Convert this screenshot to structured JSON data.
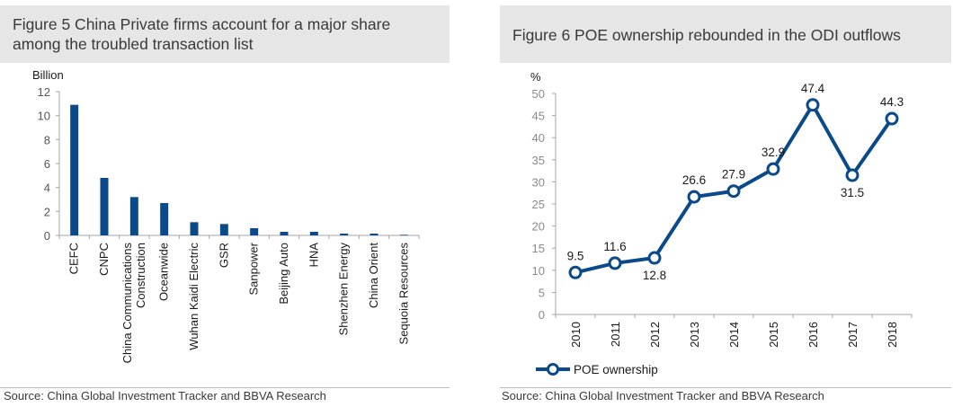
{
  "left": {
    "title": "Figure 5 China Private firms account for a major share among the troubled transaction list",
    "source": "Source: China Global Investment Tracker and BBVA Research"
  },
  "right": {
    "title": "Figure 6 POE ownership rebounded in the ODI outflows",
    "source": "Source: China Global Investment Tracker and BBVA Research"
  },
  "colors": {
    "series": "#0b4a8a",
    "axis": "#a6a6a6",
    "text": "#1a1a1a",
    "title_bg": "#e6e6e6"
  },
  "chart_data": [
    {
      "type": "bar",
      "title": "Figure 5 China Private firms account for a major share among the troubled transaction list",
      "ylabel": "Billion",
      "ylim": [
        0,
        12
      ],
      "yticks": [
        0,
        2,
        4,
        6,
        8,
        10,
        12
      ],
      "categories": [
        "CEFC",
        "CNPC",
        "China Communications Construction",
        "Oceanwide",
        "Wuhan Kaidi Electric",
        "GSR",
        "Sanpower",
        "Beijing Auto",
        "HNA",
        "Shenzhen Energy",
        "China Orient",
        "Sequoia Resources"
      ],
      "category_lines": [
        [
          "CEFC"
        ],
        [
          "CNPC"
        ],
        [
          "China Communications",
          "Construction"
        ],
        [
          "Oceanwide"
        ],
        [
          "Wuhan Kaidi Electric"
        ],
        [
          "GSR"
        ],
        [
          "Sanpower"
        ],
        [
          "Beijing Auto"
        ],
        [
          "HNA"
        ],
        [
          "Shenzhen Energy"
        ],
        [
          "China Orient"
        ],
        [
          "Sequoia Resources"
        ]
      ],
      "values": [
        10.9,
        4.8,
        3.2,
        2.7,
        1.1,
        0.95,
        0.6,
        0.3,
        0.3,
        0.15,
        0.15,
        0.05
      ],
      "grid": false
    },
    {
      "type": "line",
      "title": "Figure 6 POE ownership rebounded in the ODI outflows",
      "ylabel": "%",
      "ylim": [
        0,
        50
      ],
      "yticks": [
        0,
        5,
        10,
        15,
        20,
        25,
        30,
        35,
        40,
        45,
        50
      ],
      "x": [
        "2010",
        "2011",
        "2012",
        "2013",
        "2014",
        "2015",
        "2016",
        "2017",
        "2018"
      ],
      "series": [
        {
          "name": "POE ownership",
          "values": [
            9.5,
            11.6,
            12.8,
            26.6,
            27.9,
            32.9,
            47.4,
            31.5,
            44.3
          ]
        }
      ],
      "data_labels": [
        "9.5",
        "11.6",
        "12.8",
        "26.6",
        "27.9",
        "32.9",
        "47.4",
        "31.5",
        "44.3"
      ],
      "label_positions": [
        "above",
        "above",
        "below",
        "above",
        "above",
        "above",
        "above",
        "below",
        "above"
      ],
      "legend": "bottom-left",
      "grid": false
    }
  ]
}
